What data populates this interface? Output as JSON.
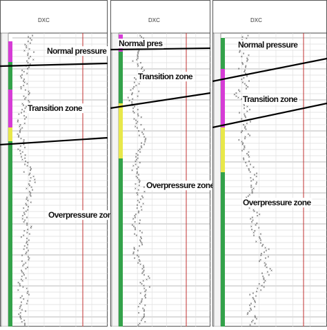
{
  "panels": [
    {
      "header": "DXC",
      "zones": [
        "Normal pressure",
        "Transition zone",
        "Overpressure zone"
      ]
    },
    {
      "header": "DXC",
      "zones": [
        "Normal pres",
        "Transition zone",
        "Overpressure zone"
      ]
    },
    {
      "header": "DXC",
      "zones": [
        "Normal pressure",
        "Transition zone",
        "Overpressure zone"
      ]
    }
  ]
}
